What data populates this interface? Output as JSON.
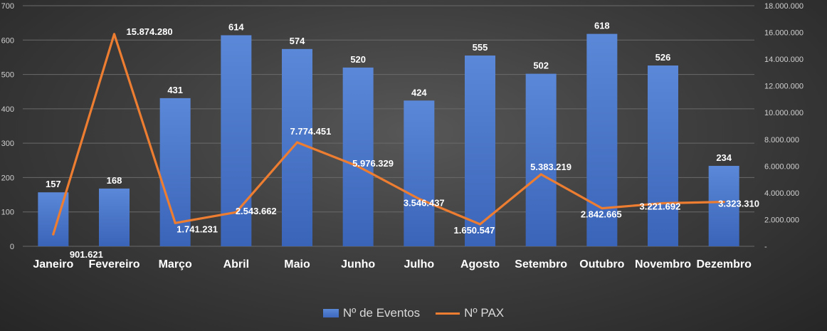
{
  "chart_data": {
    "type": "bar",
    "categories": [
      "Janeiro",
      "Fevereiro",
      "Março",
      "Abril",
      "Maio",
      "Junho",
      "Julho",
      "Agosto",
      "Setembro",
      "Outubro",
      "Novembro",
      "Dezembro"
    ],
    "series": [
      {
        "name": "Nº de Eventos",
        "type": "bar",
        "axis": "left",
        "color": "#4472c4",
        "values": [
          157,
          168,
          431,
          614,
          574,
          520,
          424,
          555,
          502,
          618,
          526,
          234
        ],
        "labels": [
          "157",
          "168",
          "431",
          "614",
          "574",
          "520",
          "424",
          "555",
          "502",
          "618",
          "526",
          "234"
        ]
      },
      {
        "name": "Nº PAX",
        "type": "line",
        "axis": "right",
        "color": "#ed7d31",
        "values": [
          901621,
          15874280,
          1741231,
          2543662,
          7774451,
          5976329,
          3546437,
          1650547,
          5383219,
          2842665,
          3221692,
          3323310
        ],
        "labels": [
          "901.621",
          "15.874.280",
          "1.741.231",
          "2.543.662",
          "7.774.451",
          "5.976.329",
          "3.546.437",
          "1.650.547",
          "5.383.219",
          "2.842.665",
          "3.221.692",
          "3.323.310"
        ]
      }
    ],
    "y_left": {
      "range": [
        0,
        700
      ],
      "ticks": [
        0,
        100,
        200,
        300,
        400,
        500,
        600,
        700
      ],
      "tick_labels": [
        "0",
        "100",
        "200",
        "300",
        "400",
        "500",
        "600",
        "700"
      ]
    },
    "y_right": {
      "range": [
        0,
        18000000
      ],
      "ticks": [
        0,
        2000000,
        4000000,
        6000000,
        8000000,
        10000000,
        12000000,
        14000000,
        16000000,
        18000000
      ],
      "tick_labels": [
        "-",
        "2.000.000",
        "4.000.000",
        "6.000.000",
        "8.000.000",
        "10.000.000",
        "12.000.000",
        "14.000.000",
        "16.000.000",
        "18.000.000"
      ]
    },
    "grid": true,
    "legend_position": "bottom"
  }
}
